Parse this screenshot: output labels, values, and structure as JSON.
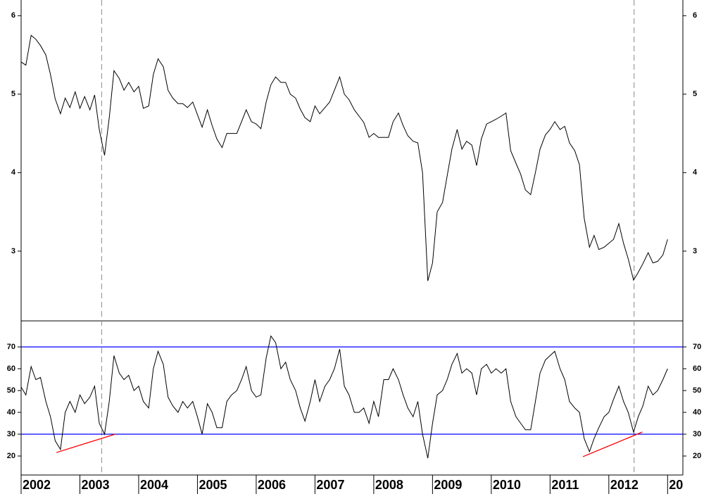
{
  "chart_data": [
    {
      "type": "line",
      "color": "#000000",
      "x": [
        2002.0,
        2002.08,
        2002.17,
        2002.25,
        2002.33,
        2002.42,
        2002.5,
        2002.58,
        2002.67,
        2002.75,
        2002.83,
        2002.92,
        2003.0,
        2003.08,
        2003.17,
        2003.25,
        2003.33,
        2003.42,
        2003.5,
        2003.58,
        2003.67,
        2003.75,
        2003.83,
        2003.92,
        2004.0,
        2004.08,
        2004.17,
        2004.25,
        2004.33,
        2004.42,
        2004.5,
        2004.58,
        2004.67,
        2004.75,
        2004.83,
        2004.92,
        2005.0,
        2005.08,
        2005.17,
        2005.25,
        2005.33,
        2005.42,
        2005.5,
        2005.58,
        2005.67,
        2005.75,
        2005.83,
        2005.92,
        2006.0,
        2006.08,
        2006.17,
        2006.25,
        2006.33,
        2006.42,
        2006.5,
        2006.58,
        2006.67,
        2006.75,
        2006.83,
        2006.92,
        2007.0,
        2007.08,
        2007.17,
        2007.25,
        2007.33,
        2007.42,
        2007.5,
        2007.58,
        2007.67,
        2007.75,
        2007.83,
        2007.92,
        2008.0,
        2008.08,
        2008.17,
        2008.25,
        2008.33,
        2008.42,
        2008.5,
        2008.58,
        2008.67,
        2008.75,
        2008.83,
        2008.92,
        2009.0,
        2009.08,
        2009.17,
        2009.25,
        2009.33,
        2009.42,
        2009.5,
        2009.58,
        2009.67,
        2009.75,
        2009.83,
        2009.92,
        2010.0,
        2010.08,
        2010.17,
        2010.25,
        2010.33,
        2010.42,
        2010.5,
        2010.58,
        2010.67,
        2010.75,
        2010.83,
        2010.92,
        2011.0,
        2011.08,
        2011.17,
        2011.25,
        2011.33,
        2011.42,
        2011.5,
        2011.58,
        2011.67,
        2011.75,
        2011.83,
        2011.92,
        2012.0,
        2012.08,
        2012.17,
        2012.25,
        2012.33,
        2012.42,
        2012.5,
        2012.58,
        2012.67,
        2012.75,
        2012.83,
        2012.92,
        2013.0
      ],
      "values": [
        5.41,
        5.37,
        5.75,
        5.7,
        5.62,
        5.5,
        5.25,
        4.94,
        4.75,
        4.95,
        4.83,
        5.03,
        4.82,
        4.97,
        4.8,
        4.99,
        4.55,
        4.22,
        4.7,
        5.3,
        5.2,
        5.05,
        5.15,
        5.03,
        5.1,
        4.82,
        4.85,
        5.25,
        5.45,
        5.35,
        5.05,
        4.95,
        4.88,
        4.88,
        4.83,
        4.9,
        4.74,
        4.58,
        4.8,
        4.6,
        4.43,
        4.32,
        4.5,
        4.5,
        4.5,
        4.65,
        4.8,
        4.65,
        4.62,
        4.56,
        4.9,
        5.12,
        5.22,
        5.15,
        5.15,
        5.0,
        4.95,
        4.81,
        4.7,
        4.65,
        4.85,
        4.75,
        4.83,
        4.9,
        5.05,
        5.22,
        5.0,
        4.93,
        4.8,
        4.72,
        4.64,
        4.45,
        4.5,
        4.45,
        4.45,
        4.45,
        4.65,
        4.76,
        4.6,
        4.47,
        4.4,
        4.38,
        4.0,
        2.62,
        2.85,
        3.5,
        3.62,
        3.96,
        4.3,
        4.55,
        4.3,
        4.4,
        4.35,
        4.09,
        4.43,
        4.62,
        4.65,
        4.68,
        4.72,
        4.76,
        4.28,
        4.12,
        3.98,
        3.78,
        3.72,
        4.0,
        4.3,
        4.48,
        4.55,
        4.65,
        4.55,
        4.59,
        4.38,
        4.28,
        4.1,
        3.42,
        3.05,
        3.2,
        3.02,
        3.05,
        3.1,
        3.15,
        3.35,
        3.1,
        2.9,
        2.63,
        2.73,
        2.84,
        2.98,
        2.85,
        2.87,
        2.95,
        3.15
      ],
      "xlim": [
        2002,
        2013.26
      ],
      "ylim": [
        2.12,
        6.2
      ],
      "yticks": [
        3,
        4,
        5,
        6
      ],
      "vlines": [
        2003.37,
        2012.43
      ]
    },
    {
      "type": "line",
      "color": "#000000",
      "values": [
        51.6,
        48,
        61,
        55,
        56,
        45,
        38,
        27,
        23,
        40,
        45,
        40,
        48,
        44,
        47,
        52,
        35,
        30,
        45,
        66,
        58,
        55,
        57,
        50,
        52,
        45,
        42,
        60,
        68,
        62,
        47,
        43,
        40,
        45,
        42,
        45,
        38,
        30,
        44,
        40,
        33,
        33,
        45,
        48,
        50,
        55,
        61,
        50,
        47,
        48,
        65,
        75,
        72,
        60,
        63,
        55,
        50,
        42,
        36,
        45,
        55,
        45,
        52,
        55,
        60,
        69,
        52,
        48,
        40,
        40,
        42,
        35,
        45,
        38,
        55,
        55,
        60,
        55,
        48,
        42,
        38,
        45,
        30,
        19,
        35,
        48,
        50,
        55,
        62,
        67,
        58,
        60,
        58,
        48,
        60,
        62,
        58,
        60,
        58,
        60,
        45,
        38,
        35,
        32,
        32,
        45,
        58,
        64,
        66,
        68,
        60,
        55,
        45,
        42,
        40,
        28,
        22,
        28,
        33,
        38,
        40,
        46,
        52,
        45,
        40,
        31,
        38,
        43,
        52,
        48,
        50,
        55,
        60
      ],
      "xlim": [
        2002,
        2013.26
      ],
      "xticks": [
        2002,
        2003,
        2004,
        2005,
        2006,
        2007,
        2008,
        2009,
        2010,
        2011,
        2012,
        {
          "value": 2013,
          "label": "20"
        }
      ],
      "ylim": [
        11.3,
        81.6
      ],
      "yticks": [
        20,
        30,
        40,
        50,
        60,
        70
      ],
      "hlines": [
        70,
        30
      ],
      "hline_color": "#0000ff",
      "trendlines": [
        {
          "x": [
            2002.6,
            2003.6
          ],
          "values": [
            21.6,
            30
          ],
          "color": "#ff0000"
        },
        {
          "x": [
            2011.56,
            2012.57
          ],
          "values": [
            19.7,
            31
          ],
          "color": "#ff0000"
        }
      ]
    }
  ]
}
